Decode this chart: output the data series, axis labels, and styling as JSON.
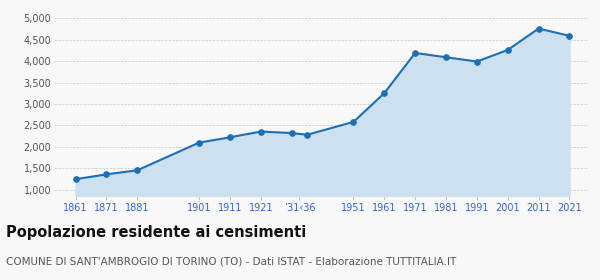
{
  "years": [
    1861,
    1871,
    1881,
    1901,
    1911,
    1921,
    1931,
    1936,
    1951,
    1961,
    1971,
    1981,
    1991,
    2001,
    2011,
    2021
  ],
  "population": [
    1243,
    1355,
    1451,
    2096,
    2220,
    2355,
    2320,
    2280,
    2580,
    3250,
    4190,
    4090,
    3990,
    4260,
    4760,
    4590
  ],
  "x_tick_labels": [
    "1861",
    "1871",
    "1881",
    "1901",
    "1911",
    "1921",
    "’31‹36",
    "1951",
    "1961",
    "1971",
    "1981",
    "1991",
    "2001",
    "2011",
    "2021"
  ],
  "x_tick_positions": [
    1861,
    1871,
    1881,
    1901,
    1911,
    1921,
    1933.5,
    1951,
    1961,
    1971,
    1981,
    1991,
    2001,
    2011,
    2021
  ],
  "line_color": "#1a6fb5",
  "fill_color": "#cce0f0",
  "marker_color": "#1a6fb5",
  "background_color": "#f8f8f8",
  "grid_color": "#c8c8c8",
  "ylim": [
    850,
    5100
  ],
  "yticks": [
    1000,
    1500,
    2000,
    2500,
    3000,
    3500,
    4000,
    4500,
    5000
  ],
  "title": "Popolazione residente ai censimenti",
  "subtitle": "COMUNE DI SANT'AMBROGIO DI TORINO (TO) - Dati ISTAT - Elaborazione TUTTITALIA.IT",
  "title_fontsize": 10.5,
  "subtitle_fontsize": 7.5
}
